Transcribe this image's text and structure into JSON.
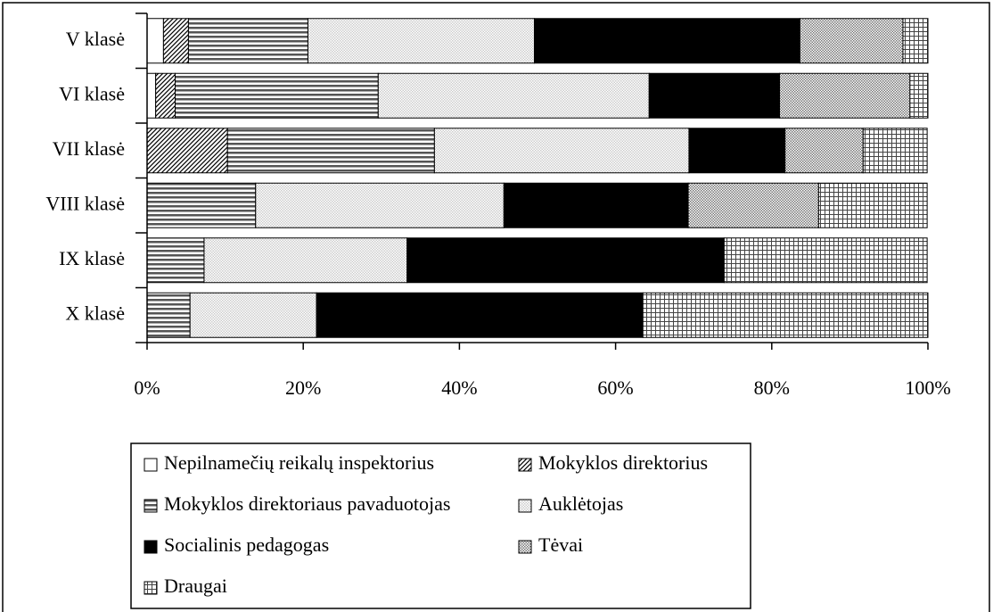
{
  "chart_data": {
    "type": "stacked_barh",
    "categories": [
      "V klasė",
      "VI klasė",
      "VII klasė",
      "VIII klasė",
      "IX klasė",
      "X klasė"
    ],
    "series": [
      {
        "name": "Nepilnamečių reikalų inspektorius",
        "color": "#ffffff",
        "pattern": "solid",
        "values": [
          2.1,
          1.1,
          0,
          0,
          0,
          0
        ]
      },
      {
        "name": "Mokyklos direktorius",
        "color": "#000000",
        "pattern": "diagonal",
        "values": [
          3.2,
          2.5,
          10.3,
          0,
          0,
          0
        ]
      },
      {
        "name": "Mokyklos direktoriaus pavaduotojas",
        "color": "#555555",
        "pattern": "horizontal",
        "values": [
          15.3,
          26.0,
          26.5,
          13.9,
          7.3,
          5.5
        ]
      },
      {
        "name": "Auklėtojas",
        "color": "#cccccc",
        "pattern": "dots",
        "values": [
          29.0,
          34.7,
          32.6,
          31.8,
          26.0,
          16.2
        ]
      },
      {
        "name": "Socialinis pedagogas",
        "color": "#000000",
        "pattern": "solid",
        "values": [
          34.0,
          16.7,
          12.3,
          23.6,
          40.6,
          41.8
        ]
      },
      {
        "name": "Tėvai",
        "color": "#777777",
        "pattern": "dots",
        "values": [
          13.2,
          16.7,
          10.0,
          16.7,
          0,
          0
        ]
      },
      {
        "name": "Draugai",
        "color": "#444444",
        "pattern": "grid",
        "values": [
          3.2,
          2.3,
          8.2,
          13.9,
          26.0,
          36.5
        ]
      }
    ],
    "xlim": [
      0,
      100
    ],
    "xticks": [
      {
        "value": 0,
        "label": "0%"
      },
      {
        "value": 20,
        "label": "20%"
      },
      {
        "value": 40,
        "label": "40%"
      },
      {
        "value": 60,
        "label": "60%"
      },
      {
        "value": 80,
        "label": "80%"
      },
      {
        "value": 100,
        "label": "100%"
      }
    ],
    "legend": "bottom"
  }
}
